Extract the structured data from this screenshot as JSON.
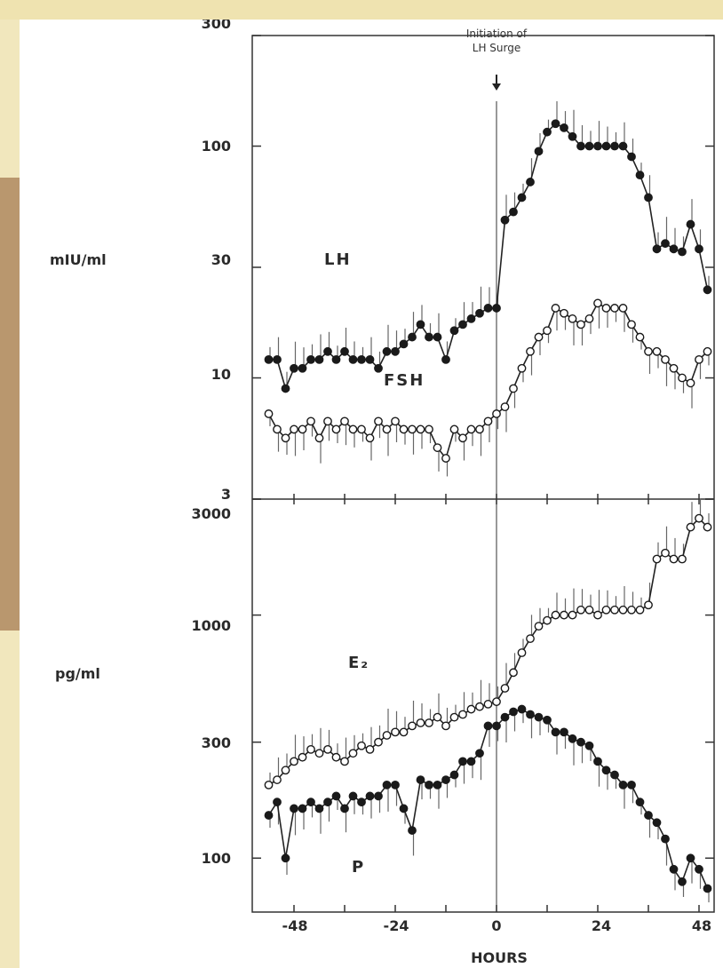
{
  "chart_data": [
    {
      "type": "line",
      "scale": "log",
      "ylabel": "mIU/ml",
      "xlabel": "HOURS",
      "ylim": [
        3,
        300
      ],
      "yticks": [
        3,
        10,
        30,
        100,
        300
      ],
      "ytick_labels": [
        "3",
        "10",
        "30",
        "100",
        "300"
      ],
      "annotation": "Initiation of\nLH Surge",
      "series": [
        {
          "name": "LH",
          "marker": "filled",
          "x": [
            -54,
            -52,
            -50,
            -48,
            -46,
            -44,
            -42,
            -40,
            -38,
            -36,
            -34,
            -32,
            -30,
            -28,
            -26,
            -24,
            -22,
            -20,
            -18,
            -16,
            -14,
            -12,
            -10,
            -8,
            -6,
            -4,
            -2,
            0,
            2,
            4,
            6,
            8,
            10,
            12,
            14,
            16,
            18,
            20,
            22,
            24,
            26,
            28,
            30,
            32,
            34,
            36,
            38,
            40,
            42,
            44,
            46,
            48,
            50
          ],
          "y": [
            12,
            12,
            9,
            11,
            11,
            12,
            12,
            13,
            12,
            13,
            12,
            12,
            12,
            11,
            13,
            13,
            14,
            15,
            17,
            15,
            15,
            12,
            16,
            17,
            18,
            19,
            20,
            20,
            48,
            52,
            60,
            70,
            95,
            115,
            125,
            120,
            110,
            100,
            100,
            100,
            100,
            100,
            100,
            90,
            75,
            60,
            36,
            38,
            36,
            35,
            46,
            36,
            24
          ]
        },
        {
          "name": "FSH",
          "marker": "open",
          "x": [
            -54,
            -52,
            -50,
            -48,
            -46,
            -44,
            -42,
            -40,
            -38,
            -36,
            -34,
            -32,
            -30,
            -28,
            -26,
            -24,
            -22,
            -20,
            -18,
            -16,
            -14,
            -12,
            -10,
            -8,
            -6,
            -4,
            -2,
            0,
            2,
            4,
            6,
            8,
            10,
            12,
            14,
            16,
            18,
            20,
            22,
            24,
            26,
            28,
            30,
            32,
            34,
            36,
            38,
            40,
            42,
            44,
            46,
            48,
            50
          ],
          "y": [
            7,
            6,
            5.5,
            6,
            6,
            6.5,
            5.5,
            6.5,
            6,
            6.5,
            6,
            6,
            5.5,
            6.5,
            6,
            6.5,
            6,
            6,
            6,
            6,
            5,
            4.5,
            6,
            5.5,
            6,
            6,
            6.5,
            7,
            7.5,
            9,
            11,
            13,
            15,
            16,
            20,
            19,
            18,
            17,
            18,
            21,
            20,
            20,
            20,
            17,
            15,
            13,
            13,
            12,
            11,
            10,
            9.5,
            12,
            13
          ]
        }
      ]
    },
    {
      "type": "line",
      "scale": "log",
      "ylabel": "pg/ml",
      "xlabel": "HOURS",
      "ylim": [
        60,
        3000
      ],
      "yticks": [
        100,
        300,
        1000,
        3000
      ],
      "ytick_labels": [
        "100",
        "300",
        "1000",
        "3000"
      ],
      "xticks": [
        -48,
        -24,
        0,
        24,
        48
      ],
      "xtick_labels": [
        "-48",
        "-24",
        "0",
        "24",
        "48"
      ],
      "series": [
        {
          "name": "E₂",
          "marker": "open",
          "x": [
            -54,
            -52,
            -50,
            -48,
            -46,
            -44,
            -42,
            -40,
            -38,
            -36,
            -34,
            -32,
            -30,
            -28,
            -26,
            -24,
            -22,
            -20,
            -18,
            -16,
            -14,
            -12,
            -10,
            -8,
            -6,
            -4,
            -2,
            0,
            2,
            4,
            6,
            8,
            10,
            12,
            14,
            16,
            18,
            20,
            22,
            24,
            26,
            28,
            30,
            32,
            34,
            36,
            38,
            40,
            42,
            44,
            46,
            48,
            50
          ],
          "y": [
            200,
            210,
            230,
            250,
            260,
            280,
            270,
            280,
            260,
            250,
            270,
            290,
            280,
            300,
            320,
            330,
            330,
            350,
            360,
            360,
            380,
            350,
            380,
            390,
            410,
            420,
            430,
            440,
            500,
            580,
            700,
            800,
            900,
            950,
            1000,
            1000,
            1000,
            1050,
            1050,
            1000,
            1050,
            1050,
            1050,
            1050,
            1050,
            1100,
            1700,
            1800,
            1700,
            1700,
            2300,
            2500,
            2300
          ]
        },
        {
          "name": "P",
          "marker": "filled",
          "x": [
            -54,
            -52,
            -50,
            -48,
            -46,
            -44,
            -42,
            -40,
            -38,
            -36,
            -34,
            -32,
            -30,
            -28,
            -26,
            -24,
            -22,
            -20,
            -18,
            -16,
            -14,
            -12,
            -10,
            -8,
            -6,
            -4,
            -2,
            0,
            2,
            4,
            6,
            8,
            10,
            12,
            14,
            16,
            18,
            20,
            22,
            24,
            26,
            28,
            30,
            32,
            34,
            36,
            38,
            40,
            42,
            44,
            46,
            48,
            50
          ],
          "y": [
            150,
            170,
            100,
            160,
            160,
            170,
            160,
            170,
            180,
            160,
            180,
            170,
            180,
            180,
            200,
            200,
            160,
            130,
            210,
            200,
            200,
            210,
            220,
            250,
            250,
            270,
            350,
            350,
            380,
            400,
            410,
            390,
            380,
            370,
            330,
            330,
            310,
            300,
            290,
            250,
            230,
            220,
            200,
            200,
            170,
            150,
            140,
            120,
            90,
            80,
            100,
            90,
            75
          ]
        }
      ]
    }
  ]
}
